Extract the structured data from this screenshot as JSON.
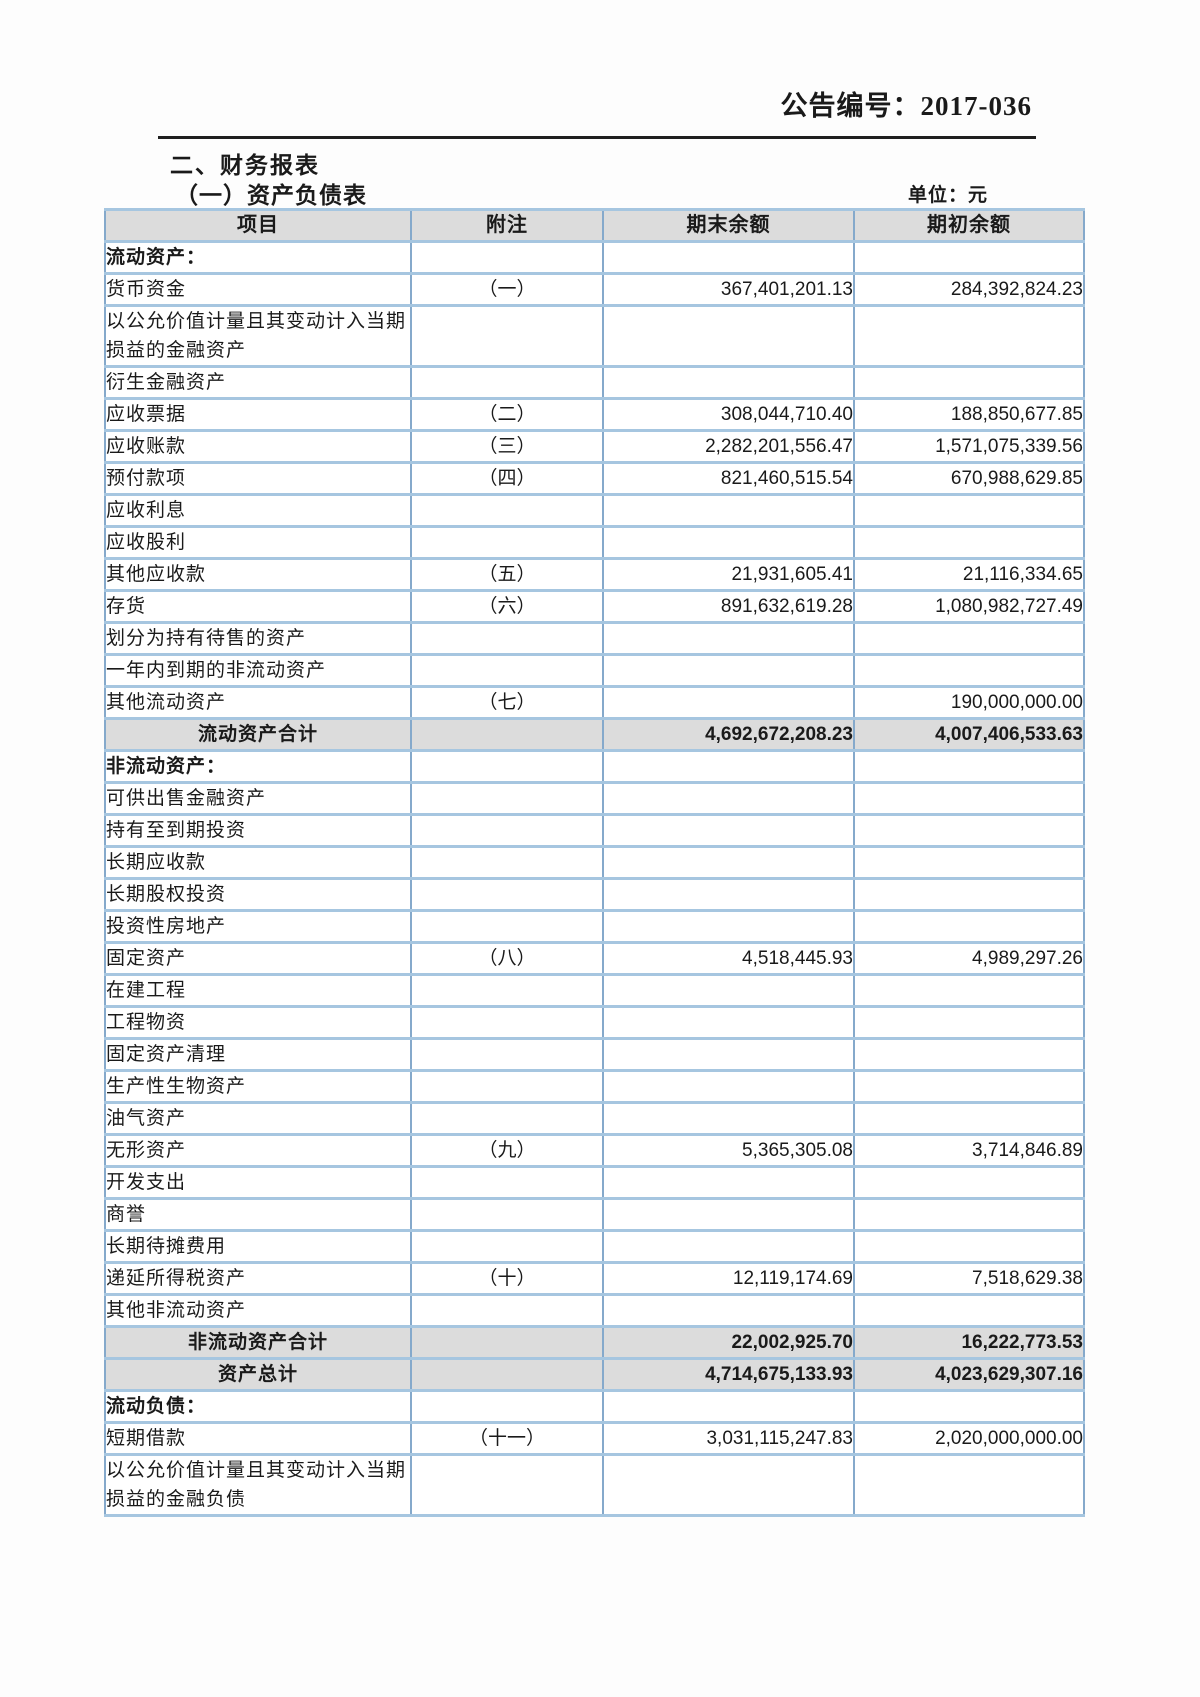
{
  "page": {
    "announcement_no": "公告编号：2017-036",
    "section_title": "二、财务报表",
    "subsection_title": "（一）资产负债表",
    "unit_label": "单位：元"
  },
  "table": {
    "headers": [
      "项目",
      "附注",
      "期末余额",
      "期初余额"
    ],
    "rows": [
      {
        "type": "section",
        "item": "流动资产：",
        "note": "",
        "end": "",
        "begin": ""
      },
      {
        "type": "item",
        "item": "货币资金",
        "note": "（一）",
        "end": "367,401,201.13",
        "begin": "284,392,824.23"
      },
      {
        "type": "item",
        "item": "以公允价值计量且其变动计入当期损益的金融资产",
        "note": "",
        "end": "",
        "begin": ""
      },
      {
        "type": "item",
        "item": "衍生金融资产",
        "note": "",
        "end": "",
        "begin": ""
      },
      {
        "type": "item",
        "item": "应收票据",
        "note": "（二）",
        "end": "308,044,710.40",
        "begin": "188,850,677.85"
      },
      {
        "type": "item",
        "item": "应收账款",
        "note": "（三）",
        "end": "2,282,201,556.47",
        "begin": "1,571,075,339.56"
      },
      {
        "type": "item",
        "item": "预付款项",
        "note": "（四）",
        "end": "821,460,515.54",
        "begin": "670,988,629.85"
      },
      {
        "type": "item",
        "item": "应收利息",
        "note": "",
        "end": "",
        "begin": ""
      },
      {
        "type": "item",
        "item": "应收股利",
        "note": "",
        "end": "",
        "begin": ""
      },
      {
        "type": "item",
        "item": "其他应收款",
        "note": "（五）",
        "end": "21,931,605.41",
        "begin": "21,116,334.65"
      },
      {
        "type": "item",
        "item": "存货",
        "note": "（六）",
        "end": "891,632,619.28",
        "begin": "1,080,982,727.49"
      },
      {
        "type": "item",
        "item": "划分为持有待售的资产",
        "note": "",
        "end": "",
        "begin": ""
      },
      {
        "type": "item",
        "item": "一年内到期的非流动资产",
        "note": "",
        "end": "",
        "begin": ""
      },
      {
        "type": "item",
        "item": "其他流动资产",
        "note": "（七）",
        "end": "",
        "begin": "190,000,000.00"
      },
      {
        "type": "total",
        "item": "流动资产合计",
        "note": "",
        "end": "4,692,672,208.23",
        "begin": "4,007,406,533.63"
      },
      {
        "type": "section",
        "item": "非流动资产：",
        "note": "",
        "end": "",
        "begin": ""
      },
      {
        "type": "item",
        "item": "可供出售金融资产",
        "note": "",
        "end": "",
        "begin": ""
      },
      {
        "type": "item",
        "item": "持有至到期投资",
        "note": "",
        "end": "",
        "begin": ""
      },
      {
        "type": "item",
        "item": "长期应收款",
        "note": "",
        "end": "",
        "begin": ""
      },
      {
        "type": "item",
        "item": "长期股权投资",
        "note": "",
        "end": "",
        "begin": ""
      },
      {
        "type": "item",
        "item": "投资性房地产",
        "note": "",
        "end": "",
        "begin": ""
      },
      {
        "type": "item",
        "item": "固定资产",
        "note": "（八）",
        "end": "4,518,445.93",
        "begin": "4,989,297.26"
      },
      {
        "type": "item",
        "item": "在建工程",
        "note": "",
        "end": "",
        "begin": ""
      },
      {
        "type": "item",
        "item": "工程物资",
        "note": "",
        "end": "",
        "begin": ""
      },
      {
        "type": "item",
        "item": "固定资产清理",
        "note": "",
        "end": "",
        "begin": ""
      },
      {
        "type": "item",
        "item": "生产性生物资产",
        "note": "",
        "end": "",
        "begin": ""
      },
      {
        "type": "item",
        "item": "油气资产",
        "note": "",
        "end": "",
        "begin": ""
      },
      {
        "type": "item",
        "item": "无形资产",
        "note": "（九）",
        "end": "5,365,305.08",
        "begin": "3,714,846.89"
      },
      {
        "type": "item",
        "item": "开发支出",
        "note": "",
        "end": "",
        "begin": ""
      },
      {
        "type": "item",
        "item": "商誉",
        "note": "",
        "end": "",
        "begin": ""
      },
      {
        "type": "item",
        "item": "长期待摊费用",
        "note": "",
        "end": "",
        "begin": ""
      },
      {
        "type": "item",
        "item": "递延所得税资产",
        "note": "（十）",
        "end": "12,119,174.69",
        "begin": "7,518,629.38"
      },
      {
        "type": "item",
        "item": "其他非流动资产",
        "note": "",
        "end": "",
        "begin": ""
      },
      {
        "type": "total",
        "item": "非流动资产合计",
        "note": "",
        "end": "22,002,925.70",
        "begin": "16,222,773.53"
      },
      {
        "type": "total",
        "item": "资产总计",
        "note": "",
        "end": "4,714,675,133.93",
        "begin": "4,023,629,307.16"
      },
      {
        "type": "section",
        "item": "流动负债：",
        "note": "",
        "end": "",
        "begin": ""
      },
      {
        "type": "item",
        "item": "短期借款",
        "note": "（十一）",
        "end": "3,031,115,247.83",
        "begin": "2,020,000,000.00"
      },
      {
        "type": "item",
        "item": "以公允价值计量且其变动计入当期损益的金融负债",
        "note": "",
        "end": "",
        "begin": ""
      }
    ]
  }
}
